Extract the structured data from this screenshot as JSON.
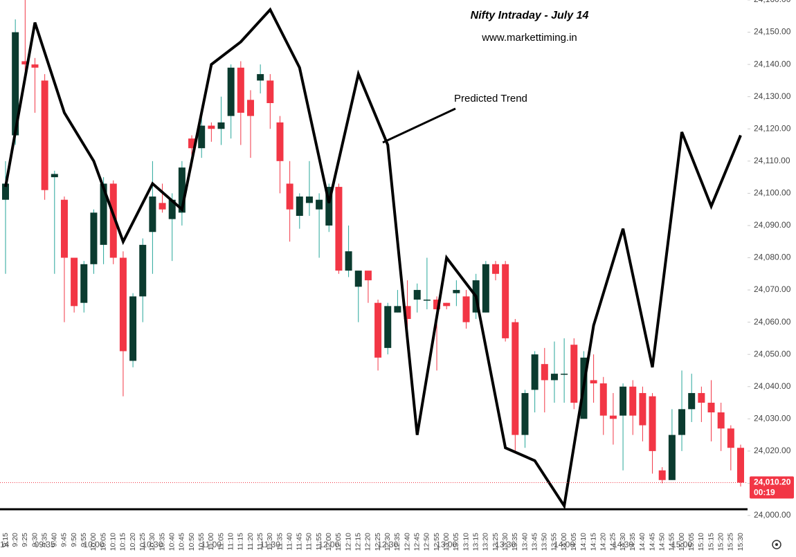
{
  "chart_data": {
    "type": "candlestick",
    "title": "Nifty Intraday - July 14",
    "subtitle": "www.markettiming.in",
    "annotation": "Predicted Trend",
    "date_label": "14",
    "major_ticks": [
      "09:35",
      "10:00",
      "10:30",
      "11:00",
      "11:30",
      "12:00",
      "12:30",
      "13:00",
      "13:30",
      "14:00",
      "14:30",
      "15:00"
    ],
    "categories": [
      "9:15",
      "9:20",
      "9:25",
      "9:30",
      "9:35",
      "9:40",
      "9:45",
      "9:50",
      "9:55",
      "10:00",
      "10:05",
      "10:10",
      "10:15",
      "10:20",
      "10:25",
      "10:30",
      "10:35",
      "10:40",
      "10:45",
      "10:50",
      "10:55",
      "11:00",
      "11:05",
      "11:10",
      "11:15",
      "11:20",
      "11:25",
      "11:30",
      "11:35",
      "11:40",
      "11:45",
      "11:50",
      "11:55",
      "12:00",
      "12:05",
      "12:10",
      "12:15",
      "12:20",
      "12:25",
      "12:30",
      "12:35",
      "12:40",
      "12:45",
      "12:50",
      "12:55",
      "13:00",
      "13:05",
      "13:10",
      "13:15",
      "13:20",
      "13:25",
      "13:30",
      "13:35",
      "13:40",
      "13:45",
      "13:50",
      "13:55",
      "14:00",
      "14:05",
      "14:10",
      "14:15",
      "14:20",
      "14:25",
      "14:30",
      "14:35",
      "14:40",
      "14:45",
      "14:50",
      "14:55",
      "15:00",
      "15:05",
      "15:10",
      "15:15",
      "15:20",
      "15:25",
      "15:30"
    ],
    "open": [
      24098,
      24118,
      24141,
      24140,
      24135,
      24105,
      24098,
      24080,
      24066,
      24078,
      24084,
      24103,
      24080,
      24048,
      24068,
      24088,
      24097,
      24092,
      24094,
      24117,
      24114,
      24121,
      24120,
      24124,
      24139,
      24129,
      24135,
      24135,
      24122,
      24103,
      24093,
      24097,
      24095,
      24090,
      24102,
      24076,
      24071,
      24076,
      24066,
      24052,
      24063,
      24065,
      24067,
      24067,
      24067,
      24066,
      24069,
      24068,
      24063,
      24063,
      24078,
      24078,
      24060,
      24025,
      24039,
      24047,
      24042,
      24044,
      24053,
      24030,
      24042,
      24041,
      24031,
      24031,
      24040,
      24038,
      24037,
      24014,
      24011,
      24025,
      24033,
      24038,
      24035,
      24032,
      24027,
      24021
    ],
    "high": [
      24110,
      24154,
      24160,
      24142,
      24137,
      24107,
      24099,
      24080,
      24079,
      24095,
      24105,
      24104,
      24082,
      24069,
      24086,
      24110,
      24103,
      24100,
      24110,
      24118,
      24124,
      24122,
      24130,
      24140,
      24141,
      24132,
      24140,
      24137,
      24124,
      24110,
      24100,
      24110,
      24100,
      24103,
      24103,
      24090,
      24076,
      24076,
      24067,
      24066,
      24070,
      24073,
      24072,
      24080,
      24068,
      24066,
      24073,
      24070,
      24075,
      24079,
      24079,
      24079,
      24061,
      24039,
      24051,
      24052,
      24054,
      24055,
      24055,
      24051,
      24050,
      24043,
      24038,
      24041,
      24042,
      24040,
      24038,
      24015,
      24033,
      24045,
      24044,
      24040,
      24042,
      24035,
      24028,
      24022
    ],
    "low": [
      24075,
      24115,
      24138,
      24125,
      24098,
      24075,
      24060,
      24063,
      24063,
      24075,
      24078,
      24078,
      24037,
      24046,
      24060,
      24075,
      24094,
      24079,
      24090,
      24108,
      24111,
      24116,
      24115,
      24117,
      24115,
      24111,
      24131,
      24120,
      24100,
      24085,
      24089,
      24093,
      24080,
      24088,
      24075,
      24074,
      24060,
      24066,
      24045,
      24050,
      24063,
      24058,
      24063,
      24064,
      24045,
      24064,
      24065,
      24058,
      24061,
      24063,
      24073,
      24054,
      24020,
      24021,
      24032,
      24032,
      24035,
      24035,
      24033,
      24030,
      24035,
      24025,
      24022,
      24014,
      24025,
      24023,
      24013,
      24010,
      24011,
      24020,
      24029,
      24029,
      24023,
      24020,
      24014,
      24009
    ],
    "close": [
      24103,
      24150,
      24140,
      24139,
      24101,
      24106,
      24080,
      24065,
      24078,
      24094,
      24103,
      24080,
      24051,
      24068,
      24084,
      24099,
      24095,
      24098,
      24108,
      24114,
      24121,
      24120,
      24122,
      24139,
      24125,
      24124,
      24137,
      24128,
      24110,
      24095,
      24099,
      24099,
      24098,
      24102,
      24076,
      24082,
      24076,
      24073,
      24049,
      24065,
      24065,
      24061,
      24070,
      24067,
      24064,
      24065,
      24070,
      24060,
      24073,
      24078,
      24075,
      24055,
      24025,
      24038,
      24050,
      24042,
      24044,
      24044,
      24035,
      24049,
      24041,
      24031,
      24030,
      24040,
      24031,
      24028,
      24020,
      24011,
      24025,
      24033,
      24038,
      24035,
      24032,
      24027,
      24021,
      24010.2
    ],
    "up_color": "#0b3b2f",
    "up_wick_color": "#26a69a",
    "down_color": "#f23645",
    "trend": {
      "color": "#000000",
      "categories": [
        "9:15",
        "9:30",
        "9:45",
        "10:00",
        "10:15",
        "10:30",
        "10:45",
        "11:00",
        "11:15",
        "11:30",
        "11:45",
        "12:00",
        "12:15",
        "12:30",
        "12:45",
        "13:00",
        "13:15",
        "13:30",
        "13:45",
        "14:00",
        "14:15",
        "14:30",
        "14:45",
        "15:00",
        "15:15",
        "15:30"
      ],
      "values": [
        24102,
        24153,
        24125,
        24110,
        24085,
        24103,
        24095,
        24140,
        24147,
        24157,
        24139,
        24097,
        24137,
        24115,
        24025,
        24080,
        24068,
        24021,
        24017,
        24003,
        24059,
        24089,
        24046,
        24119,
        24096,
        24118
      ]
    },
    "ylim": [
      24000,
      24160
    ],
    "yticks": [
      {
        "value": 24000,
        "label": "24,000.00"
      },
      {
        "value": 24010,
        "label": "24,010.00"
      },
      {
        "value": 24020,
        "label": "24,020.00"
      },
      {
        "value": 24030,
        "label": "24,030.00"
      },
      {
        "value": 24040,
        "label": "24,040.00"
      },
      {
        "value": 24050,
        "label": "24,050.00"
      },
      {
        "value": 24060,
        "label": "24,060.00"
      },
      {
        "value": 24070,
        "label": "24,070.00"
      },
      {
        "value": 24080,
        "label": "24,080.00"
      },
      {
        "value": 24090,
        "label": "24,090.00"
      },
      {
        "value": 24100,
        "label": "24,100.00"
      },
      {
        "value": 24110,
        "label": "24,110.00"
      },
      {
        "value": 24120,
        "label": "24,120.00"
      },
      {
        "value": 24130,
        "label": "24,130.00"
      },
      {
        "value": 24140,
        "label": "24,140.00"
      },
      {
        "value": 24150,
        "label": "24,150.00"
      },
      {
        "value": 24160,
        "label": "24,160.00"
      }
    ],
    "last_price": {
      "value": 24010.2,
      "label": "24,010.20"
    },
    "countdown": "00:19"
  }
}
